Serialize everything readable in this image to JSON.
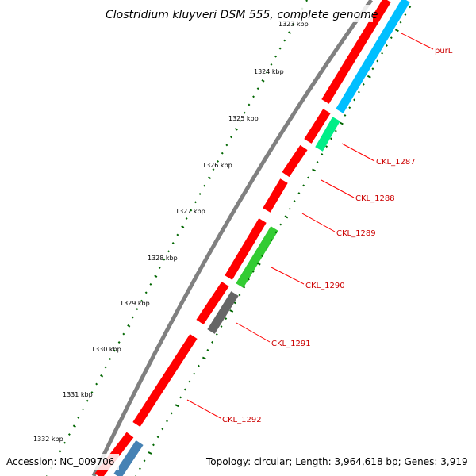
{
  "title": "Clostridium kluyveri DSM 555, complete genome",
  "accession": "Accession: NC_009706",
  "topology": "Topology: circular; Length: 3,964,618 bp; Genes: 3,919",
  "ticks": [
    "1323 kbp",
    "1324 kbp",
    "1325 kbp",
    "1326 kbp",
    "1327 kbp",
    "1328 kbp",
    "1329 kbp",
    "1330 kbp",
    "1331 kbp",
    "1332 kbp"
  ],
  "gene_labels": [
    "purL",
    "CKL_1287",
    "CKL_1288",
    "CKL_1289",
    "CKL_1290",
    "CKL_1291",
    "CKL_1292"
  ],
  "colors": {
    "backbone": "#808080",
    "cds": "#ff0000",
    "purL": "#00bfff",
    "CKL_1287": "#00ee88",
    "CKL_1290": "#33cc33",
    "CKL_1291": "#666666",
    "bottom_feature": "#4682b4",
    "ticks": "#006600",
    "label_line": "#ff0000"
  }
}
